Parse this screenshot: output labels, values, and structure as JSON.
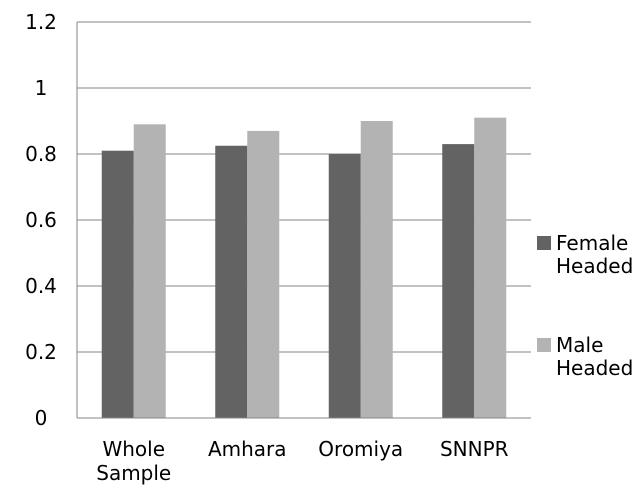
{
  "chart_data": {
    "type": "bar",
    "title": "",
    "xlabel": "",
    "ylabel": "",
    "ylim": [
      0,
      1.2
    ],
    "yticks": [
      "0",
      "0.2",
      "0.4",
      "0.6",
      "0.8",
      "1",
      "1.2"
    ],
    "grid": true,
    "legend_position": "right",
    "categories": [
      [
        "Whole",
        "Sample"
      ],
      [
        "Amhara"
      ],
      [
        "Oromiya"
      ],
      [
        "SNNPR"
      ]
    ],
    "series": [
      {
        "name": [
          "Female",
          "Headed"
        ],
        "color": "#636363",
        "values": [
          0.81,
          0.825,
          0.8,
          0.83
        ]
      },
      {
        "name": [
          "Male",
          "Headed"
        ],
        "color": "#b3b3b3",
        "values": [
          0.89,
          0.87,
          0.9,
          0.91
        ]
      }
    ]
  }
}
